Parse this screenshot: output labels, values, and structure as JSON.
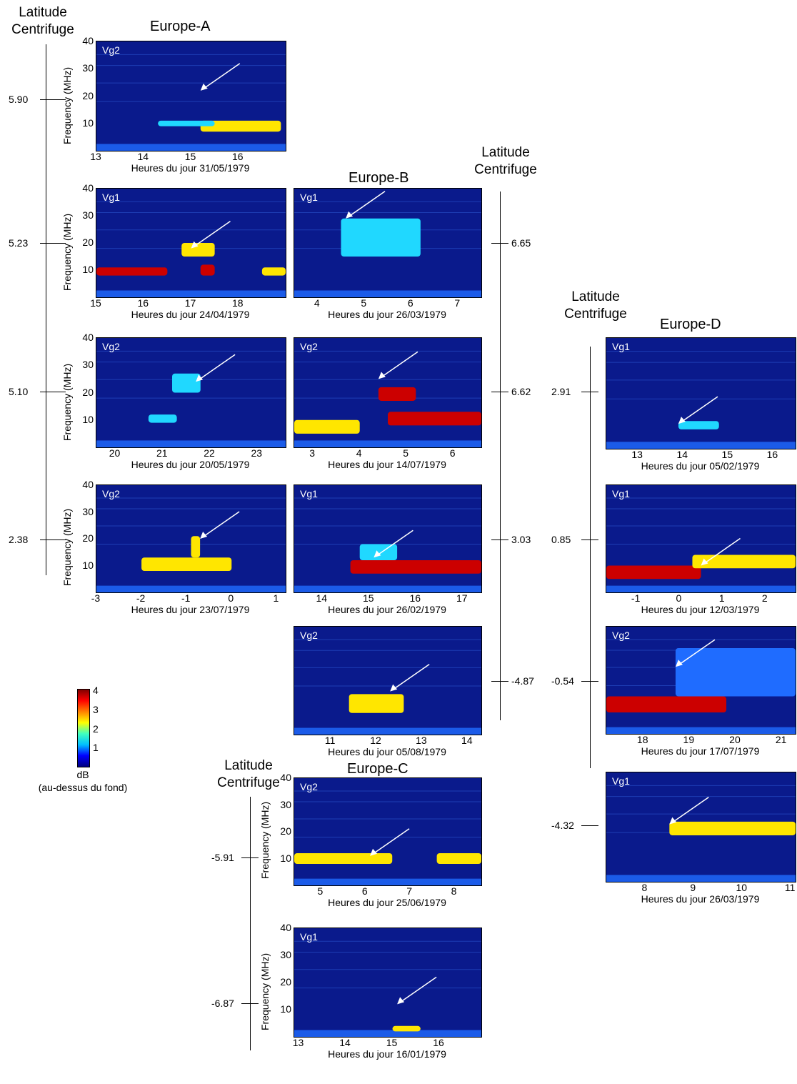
{
  "groups": [
    {
      "title": "Europe-A",
      "lat_header": [
        "Latitude",
        "Centrifuge"
      ],
      "lat_values": [
        "5.90",
        "5.23",
        "5.10",
        "2.38"
      ]
    },
    {
      "title": "Europe-B",
      "lat_header": [
        "Latitude",
        "Centrifuge"
      ],
      "lat_values": [
        "6.65",
        "6.62",
        "3.03",
        "-4.87"
      ]
    },
    {
      "title": "Europe-C",
      "lat_header": [
        "Latitude",
        "Centrifuge"
      ],
      "lat_values": [
        "-5.91",
        "-6.87"
      ]
    },
    {
      "title": "Europe-D",
      "lat_header": [
        "Latitude",
        "Centrifuge"
      ],
      "lat_values": [
        "2.91",
        "0.85",
        "-0.54",
        "-4.32"
      ]
    }
  ],
  "ylabel": "Frequency (MHz)",
  "colorbar": {
    "ticks": [
      "1",
      "2",
      "3",
      "4"
    ],
    "range": [
      0,
      4
    ],
    "title": "dB",
    "subtitle": "(au-dessus du fond)",
    "colors": [
      "#00007f",
      "#0000ff",
      "#00bfff",
      "#40ffbf",
      "#ffff00",
      "#ff8000",
      "#ff0000",
      "#7f0000"
    ]
  },
  "chart_data": [
    {
      "type": "heatmap",
      "group": "Europe-A",
      "vg": "Vg2",
      "xlabel": "Heures du jour 31/05/1979",
      "xticks": [
        "13",
        "14",
        "15",
        "16"
      ],
      "xlim": [
        13,
        17
      ],
      "yticks": [
        "10",
        "20",
        "30",
        "40"
      ],
      "ylim": [
        0,
        40
      ],
      "emission_bands": [
        {
          "x": [
            15.2,
            16.9
          ],
          "f": [
            7,
            11
          ],
          "level": 3
        },
        {
          "x": [
            14.3,
            15.5
          ],
          "f": [
            9,
            11
          ],
          "level": 2
        }
      ],
      "arrow_target": {
        "x": 15.2,
        "f": 22
      }
    },
    {
      "type": "heatmap",
      "group": "Europe-A",
      "vg": "Vg1",
      "xlabel": "Heures du jour 24/04/1979",
      "xticks": [
        "15",
        "16",
        "17",
        "18"
      ],
      "xlim": [
        15,
        19
      ],
      "yticks": [
        "10",
        "20",
        "30",
        "40"
      ],
      "ylim": [
        0,
        40
      ],
      "emission_bands": [
        {
          "x": [
            15,
            16.5
          ],
          "f": [
            8,
            11
          ],
          "level": 4
        },
        {
          "x": [
            16.8,
            17.5
          ],
          "f": [
            15,
            20
          ],
          "level": 3
        },
        {
          "x": [
            17.2,
            17.5
          ],
          "f": [
            8,
            12
          ],
          "level": 4
        },
        {
          "x": [
            18.5,
            19
          ],
          "f": [
            8,
            11
          ],
          "level": 3
        }
      ],
      "arrow_target": {
        "x": 17.0,
        "f": 18
      }
    },
    {
      "type": "heatmap",
      "group": "Europe-B",
      "vg": "Vg1",
      "xlabel": "Heures du jour 26/03/1979",
      "xticks": [
        "4",
        "5",
        "6",
        "7"
      ],
      "xlim": [
        3.5,
        7.5
      ],
      "yticks": [],
      "ylim": [
        0,
        40
      ],
      "emission_bands": [
        {
          "x": [
            4.5,
            6.2
          ],
          "f": [
            15,
            29
          ],
          "level": 2
        }
      ],
      "arrow_target": {
        "x": 4.6,
        "f": 29
      }
    },
    {
      "type": "heatmap",
      "group": "Europe-A",
      "vg": "Vg2",
      "xlabel": "Heures du jour 20/05/1979",
      "xticks": [
        "20",
        "21",
        "22",
        "23"
      ],
      "xlim": [
        19.6,
        23.6
      ],
      "yticks": [
        "10",
        "20",
        "30",
        "40"
      ],
      "ylim": [
        0,
        40
      ],
      "emission_bands": [
        {
          "x": [
            21.2,
            21.8
          ],
          "f": [
            20,
            27
          ],
          "level": 2
        },
        {
          "x": [
            20.7,
            21.3
          ],
          "f": [
            9,
            12
          ],
          "level": 2
        }
      ],
      "arrow_target": {
        "x": 21.7,
        "f": 24
      }
    },
    {
      "type": "heatmap",
      "group": "Europe-B",
      "vg": "Vg2",
      "xlabel": "Heures du jour 14/07/1979",
      "xticks": [
        "3",
        "4",
        "5",
        "6"
      ],
      "xlim": [
        2.6,
        6.6
      ],
      "yticks": [],
      "ylim": [
        0,
        40
      ],
      "emission_bands": [
        {
          "x": [
            4.6,
            6.6
          ],
          "f": [
            8,
            13
          ],
          "level": 4
        },
        {
          "x": [
            4.4,
            5.2
          ],
          "f": [
            17,
            22
          ],
          "level": 4
        },
        {
          "x": [
            2.6,
            4.0
          ],
          "f": [
            5,
            10
          ],
          "level": 3
        }
      ],
      "arrow_target": {
        "x": 4.4,
        "f": 25
      }
    },
    {
      "type": "heatmap",
      "group": "Europe-D",
      "vg": "Vg1",
      "xlabel": "Heures du jour 05/02/1979",
      "xticks": [
        "13",
        "14",
        "15",
        "16"
      ],
      "xlim": [
        12.3,
        16.5
      ],
      "yticks": [],
      "ylim": [
        0,
        40
      ],
      "emission_bands": [
        {
          "x": [
            13.9,
            14.8
          ],
          "f": [
            7,
            10
          ],
          "level": 2
        }
      ],
      "arrow_target": {
        "x": 13.9,
        "f": 9
      }
    },
    {
      "type": "heatmap",
      "group": "Europe-A",
      "vg": "Vg2",
      "xlabel": "Heures du jour 23/07/1979",
      "xticks": [
        "-3",
        "-2",
        "-1",
        "0",
        "1"
      ],
      "xlim": [
        -3,
        1.2
      ],
      "yticks": [
        "10",
        "20",
        "30",
        "40"
      ],
      "ylim": [
        0,
        40
      ],
      "emission_bands": [
        {
          "x": [
            -2.0,
            0.0
          ],
          "f": [
            8,
            13
          ],
          "level": 3
        },
        {
          "x": [
            -0.9,
            -0.7
          ],
          "f": [
            13,
            21
          ],
          "level": 3
        }
      ],
      "arrow_target": {
        "x": -0.7,
        "f": 20
      }
    },
    {
      "type": "heatmap",
      "group": "Europe-B",
      "vg": "Vg1",
      "xlabel": "Heures du jour 26/02/1979",
      "xticks": [
        "14",
        "15",
        "16",
        "17"
      ],
      "xlim": [
        13.4,
        17.4
      ],
      "yticks": [],
      "ylim": [
        0,
        40
      ],
      "emission_bands": [
        {
          "x": [
            14.6,
            17.4
          ],
          "f": [
            7,
            12
          ],
          "level": 4
        },
        {
          "x": [
            14.8,
            15.6
          ],
          "f": [
            12,
            18
          ],
          "level": 2
        }
      ],
      "arrow_target": {
        "x": 15.1,
        "f": 13
      }
    },
    {
      "type": "heatmap",
      "group": "Europe-D",
      "vg": "Vg1",
      "xlabel": "Heures du jour 12/03/1979",
      "xticks": [
        "-1",
        "0",
        "1",
        "2"
      ],
      "xlim": [
        -1.7,
        2.7
      ],
      "yticks": [],
      "ylim": [
        0,
        40
      ],
      "emission_bands": [
        {
          "x": [
            -1.7,
            0.5
          ],
          "f": [
            5,
            10
          ],
          "level": 4
        },
        {
          "x": [
            0.3,
            2.7
          ],
          "f": [
            9,
            14
          ],
          "level": 3
        }
      ],
      "arrow_target": {
        "x": 0.5,
        "f": 10
      }
    },
    {
      "type": "heatmap",
      "group": "Europe-B",
      "vg": "Vg2",
      "xlabel": "Heures du jour 05/08/1979",
      "xticks": [
        "11",
        "12",
        "13",
        "14"
      ],
      "xlim": [
        10.2,
        14.3
      ],
      "yticks": [],
      "ylim": [
        0,
        40
      ],
      "emission_bands": [
        {
          "x": [
            11.4,
            12.6
          ],
          "f": [
            8,
            15
          ],
          "level": 3
        }
      ],
      "arrow_target": {
        "x": 12.3,
        "f": 16
      }
    },
    {
      "type": "heatmap",
      "group": "Europe-D",
      "vg": "Vg2",
      "xlabel": "Heures du jour 17/07/1979",
      "xticks": [
        "18",
        "19",
        "20",
        "21"
      ],
      "xlim": [
        17.2,
        21.3
      ],
      "yticks": [],
      "ylim": [
        0,
        40
      ],
      "emission_bands": [
        {
          "x": [
            17.2,
            19.8
          ],
          "f": [
            8,
            14
          ],
          "level": 4
        },
        {
          "x": [
            18.7,
            21.3
          ],
          "f": [
            14,
            32
          ],
          "level": 1
        }
      ],
      "arrow_target": {
        "x": 18.7,
        "f": 25
      }
    },
    {
      "type": "heatmap",
      "group": "Europe-C",
      "vg": "Vg2",
      "xlabel": "Heures du jour 25/06/1979",
      "xticks": [
        "5",
        "6",
        "7",
        "8"
      ],
      "xlim": [
        4.4,
        8.6
      ],
      "yticks": [
        "10",
        "20",
        "30",
        "40"
      ],
      "ylim": [
        0,
        40
      ],
      "emission_bands": [
        {
          "x": [
            4.4,
            6.6
          ],
          "f": [
            8,
            12
          ],
          "level": 3
        },
        {
          "x": [
            7.6,
            8.6
          ],
          "f": [
            8,
            12
          ],
          "level": 3
        }
      ],
      "arrow_target": {
        "x": 6.1,
        "f": 11
      }
    },
    {
      "type": "heatmap",
      "group": "Europe-D",
      "vg": "Vg1",
      "xlabel": "Heures du jour 26/03/1979",
      "xticks": [
        "8",
        "9",
        "10",
        "11"
      ],
      "xlim": [
        7.2,
        11.1
      ],
      "yticks": [],
      "ylim": [
        0,
        40
      ],
      "emission_bands": [
        {
          "x": [
            8.5,
            11.1
          ],
          "f": [
            17,
            22
          ],
          "level": 3
        }
      ],
      "arrow_target": {
        "x": 8.5,
        "f": 21
      }
    },
    {
      "type": "heatmap",
      "group": "Europe-C",
      "vg": "Vg1",
      "xlabel": "Heures du jour 16/01/1979",
      "xticks": [
        "13",
        "14",
        "15",
        "16"
      ],
      "xlim": [
        12.9,
        16.9
      ],
      "yticks": [
        "10",
        "20",
        "30",
        "40"
      ],
      "ylim": [
        0,
        40
      ],
      "emission_bands": [
        {
          "x": [
            15.0,
            15.6
          ],
          "f": [
            2,
            4
          ],
          "level": 3
        }
      ],
      "arrow_target": {
        "x": 15.1,
        "f": 12
      }
    }
  ]
}
